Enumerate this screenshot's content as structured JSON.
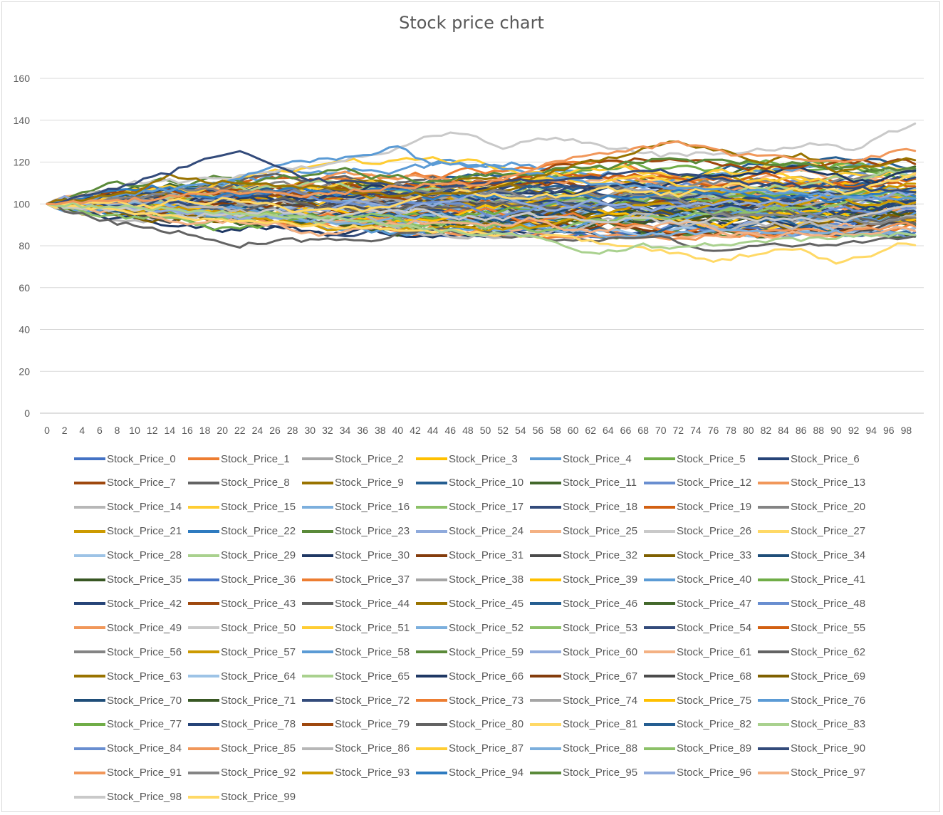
{
  "chart_data": {
    "type": "line",
    "title": "Stock price chart",
    "xlabel": "",
    "ylabel": "",
    "xlim": [
      0,
      99
    ],
    "ylim": [
      0,
      160
    ],
    "y_ticks": [
      0,
      20,
      40,
      60,
      80,
      100,
      120,
      140,
      160
    ],
    "x_ticks": [
      0,
      2,
      4,
      6,
      8,
      10,
      12,
      14,
      16,
      18,
      20,
      22,
      24,
      26,
      28,
      30,
      32,
      34,
      36,
      38,
      40,
      42,
      44,
      46,
      48,
      50,
      52,
      54,
      56,
      58,
      60,
      62,
      64,
      66,
      68,
      70,
      72,
      74,
      76,
      78,
      80,
      82,
      84,
      86,
      88,
      90,
      92,
      94,
      96,
      98
    ],
    "grid": true,
    "legend_position": "bottom",
    "start_value": 100,
    "x_count": 100,
    "palette": [
      "#4472C4",
      "#ED7D31",
      "#A5A5A5",
      "#FFC000",
      "#5B9BD5",
      "#70AD47",
      "#264478",
      "#9E480E",
      "#636363",
      "#997300",
      "#255E91",
      "#43682B",
      "#698ED0",
      "#F1975A",
      "#B7B7B7",
      "#FFCD33",
      "#7CAFDD",
      "#8CC168",
      "#334B7B",
      "#D26012",
      "#848484",
      "#CC9A00",
      "#2E7BC0",
      "#5A8A39",
      "#8FAADC",
      "#F4B183",
      "#C9C9C9",
      "#FFD966",
      "#9DC3E6",
      "#A9D18E",
      "#1F3864",
      "#843C0C",
      "#4B4B4B",
      "#7F6000",
      "#1F4E79",
      "#385723"
    ],
    "series_count": 100,
    "highlight_series": [
      {
        "name": "Stock_Price_50",
        "color": "#C9C9C9",
        "key": [
          [
            0,
            100
          ],
          [
            10,
            110
          ],
          [
            20,
            112
          ],
          [
            30,
            118
          ],
          [
            38,
            124
          ],
          [
            44,
            133
          ],
          [
            48,
            134
          ],
          [
            52,
            127
          ],
          [
            58,
            132
          ],
          [
            62,
            129
          ],
          [
            70,
            123
          ],
          [
            80,
            125
          ],
          [
            88,
            129
          ],
          [
            92,
            126
          ],
          [
            96,
            134
          ],
          [
            99,
            138
          ]
        ]
      },
      {
        "name": "Stock_Price_58",
        "color": "#5B9BD5",
        "key": [
          [
            0,
            100
          ],
          [
            10,
            105
          ],
          [
            20,
            110
          ],
          [
            28,
            120
          ],
          [
            34,
            122
          ],
          [
            40,
            127
          ],
          [
            44,
            119
          ],
          [
            50,
            118
          ],
          [
            56,
            114
          ],
          [
            62,
            110
          ],
          [
            70,
            108
          ],
          [
            80,
            106
          ],
          [
            90,
            104
          ],
          [
            99,
            102
          ]
        ]
      },
      {
        "name": "Stock_Price_72",
        "color": "#334B7B",
        "key": [
          [
            0,
            100
          ],
          [
            8,
            108
          ],
          [
            14,
            115
          ],
          [
            18,
            122
          ],
          [
            22,
            125
          ],
          [
            26,
            118
          ],
          [
            30,
            112
          ],
          [
            40,
            108
          ],
          [
            50,
            110
          ],
          [
            60,
            112
          ],
          [
            70,
            116
          ],
          [
            80,
            110
          ],
          [
            90,
            108
          ],
          [
            99,
            106
          ]
        ]
      },
      {
        "name": "Stock_Price_63",
        "color": "#997300",
        "key": [
          [
            0,
            100
          ],
          [
            10,
            106
          ],
          [
            14,
            114
          ],
          [
            20,
            110
          ],
          [
            30,
            108
          ],
          [
            40,
            104
          ],
          [
            50,
            106
          ],
          [
            60,
            118
          ],
          [
            66,
            124
          ],
          [
            72,
            130
          ],
          [
            76,
            126
          ],
          [
            82,
            120
          ],
          [
            86,
            124
          ],
          [
            90,
            116
          ],
          [
            99,
            122
          ]
        ]
      },
      {
        "name": "Stock_Price_81",
        "color": "#FFD966",
        "key": [
          [
            0,
            100
          ],
          [
            10,
            96
          ],
          [
            20,
            92
          ],
          [
            30,
            90
          ],
          [
            40,
            88
          ],
          [
            50,
            86
          ],
          [
            60,
            84
          ],
          [
            66,
            80
          ],
          [
            72,
            76
          ],
          [
            76,
            73
          ],
          [
            82,
            77
          ],
          [
            86,
            78
          ],
          [
            88,
            75
          ],
          [
            90,
            72
          ],
          [
            94,
            76
          ],
          [
            98,
            82
          ],
          [
            99,
            80
          ]
        ]
      },
      {
        "name": "Stock_Price_83",
        "color": "#A9D18E",
        "key": [
          [
            0,
            100
          ],
          [
            10,
            98
          ],
          [
            20,
            96
          ],
          [
            30,
            94
          ],
          [
            40,
            90
          ],
          [
            48,
            86
          ],
          [
            52,
            85
          ],
          [
            56,
            84
          ],
          [
            60,
            78
          ],
          [
            64,
            77
          ],
          [
            68,
            80
          ],
          [
            72,
            79
          ],
          [
            80,
            82
          ],
          [
            90,
            84
          ],
          [
            99,
            86
          ]
        ]
      },
      {
        "name": "Stock_Price_62",
        "color": "#636363",
        "key": [
          [
            0,
            100
          ],
          [
            6,
            92
          ],
          [
            12,
            89
          ],
          [
            18,
            83
          ],
          [
            22,
            80
          ],
          [
            28,
            83
          ],
          [
            36,
            82
          ],
          [
            44,
            88
          ],
          [
            50,
            86
          ],
          [
            60,
            82
          ],
          [
            70,
            84
          ],
          [
            76,
            77
          ],
          [
            80,
            80
          ],
          [
            90,
            81
          ],
          [
            99,
            84
          ]
        ]
      },
      {
        "name": "Stock_Price_91",
        "color": "#F1975A",
        "key": [
          [
            0,
            100
          ],
          [
            10,
            102
          ],
          [
            20,
            106
          ],
          [
            30,
            104
          ],
          [
            40,
            108
          ],
          [
            50,
            110
          ],
          [
            60,
            122
          ],
          [
            66,
            125
          ],
          [
            72,
            130
          ],
          [
            78,
            124
          ],
          [
            84,
            122
          ],
          [
            90,
            120
          ],
          [
            99,
            126
          ]
        ]
      }
    ],
    "series_names": [
      "Stock_Price_0",
      "Stock_Price_1",
      "Stock_Price_2",
      "Stock_Price_3",
      "Stock_Price_4",
      "Stock_Price_5",
      "Stock_Price_6",
      "Stock_Price_7",
      "Stock_Price_8",
      "Stock_Price_9",
      "Stock_Price_10",
      "Stock_Price_11",
      "Stock_Price_12",
      "Stock_Price_13",
      "Stock_Price_14",
      "Stock_Price_15",
      "Stock_Price_16",
      "Stock_Price_17",
      "Stock_Price_18",
      "Stock_Price_19",
      "Stock_Price_20",
      "Stock_Price_21",
      "Stock_Price_22",
      "Stock_Price_23",
      "Stock_Price_24",
      "Stock_Price_25",
      "Stock_Price_26",
      "Stock_Price_27",
      "Stock_Price_28",
      "Stock_Price_29",
      "Stock_Price_30",
      "Stock_Price_31",
      "Stock_Price_32",
      "Stock_Price_33",
      "Stock_Price_34",
      "Stock_Price_35",
      "Stock_Price_36",
      "Stock_Price_37",
      "Stock_Price_38",
      "Stock_Price_39",
      "Stock_Price_40",
      "Stock_Price_41",
      "Stock_Price_42",
      "Stock_Price_43",
      "Stock_Price_44",
      "Stock_Price_45",
      "Stock_Price_46",
      "Stock_Price_47",
      "Stock_Price_48",
      "Stock_Price_49",
      "Stock_Price_50",
      "Stock_Price_51",
      "Stock_Price_52",
      "Stock_Price_53",
      "Stock_Price_54",
      "Stock_Price_55",
      "Stock_Price_56",
      "Stock_Price_57",
      "Stock_Price_58",
      "Stock_Price_59",
      "Stock_Price_60",
      "Stock_Price_61",
      "Stock_Price_62",
      "Stock_Price_63",
      "Stock_Price_64",
      "Stock_Price_65",
      "Stock_Price_66",
      "Stock_Price_67",
      "Stock_Price_68",
      "Stock_Price_69",
      "Stock_Price_70",
      "Stock_Price_71",
      "Stock_Price_72",
      "Stock_Price_73",
      "Stock_Price_74",
      "Stock_Price_75",
      "Stock_Price_76",
      "Stock_Price_77",
      "Stock_Price_78",
      "Stock_Price_79",
      "Stock_Price_80",
      "Stock_Price_81",
      "Stock_Price_82",
      "Stock_Price_83",
      "Stock_Price_84",
      "Stock_Price_85",
      "Stock_Price_86",
      "Stock_Price_87",
      "Stock_Price_88",
      "Stock_Price_89",
      "Stock_Price_90",
      "Stock_Price_91",
      "Stock_Price_92",
      "Stock_Price_93",
      "Stock_Price_94",
      "Stock_Price_95",
      "Stock_Price_96",
      "Stock_Price_97",
      "Stock_Price_98",
      "Stock_Price_99"
    ]
  }
}
